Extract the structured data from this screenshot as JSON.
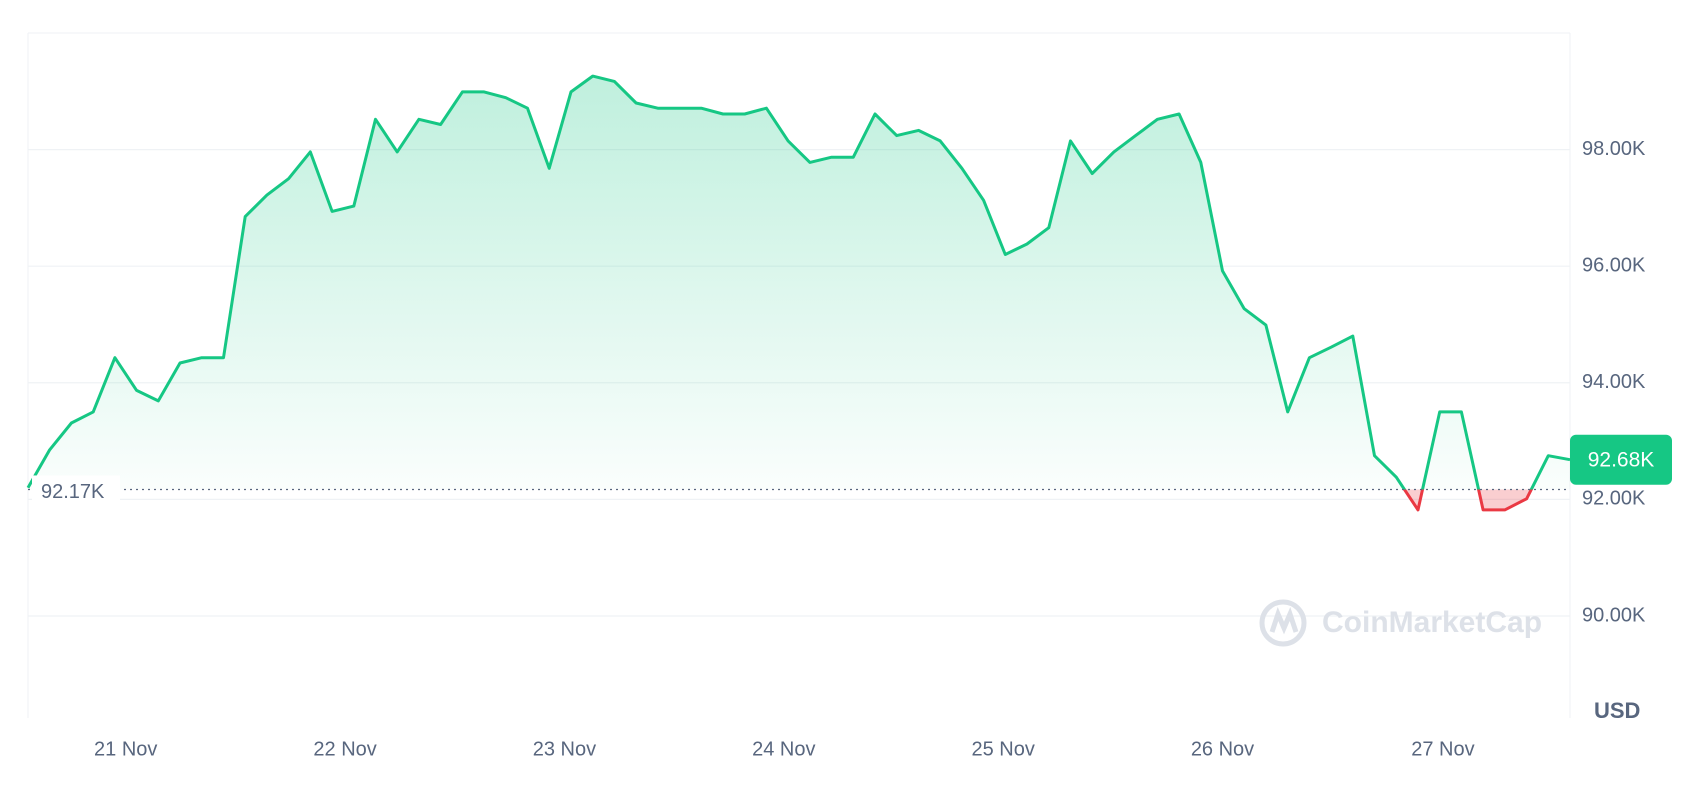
{
  "chart_data": {
    "type": "line",
    "series": [
      {
        "name": "Price",
        "color": "#16c784",
        "down_color": "#ea3943",
        "values": [
          92200,
          92850,
          93310,
          93500,
          94430,
          93870,
          93690,
          94340,
          94430,
          94430,
          96850,
          97220,
          97500,
          97960,
          96940,
          97030,
          98520,
          97960,
          98520,
          98430,
          98990,
          98990,
          98890,
          98710,
          97680,
          98990,
          99260,
          99170,
          98800,
          98710,
          98710,
          98710,
          98610,
          98610,
          98710,
          98150,
          97780,
          97870,
          97870,
          98610,
          98240,
          98330,
          98150,
          97680,
          97130,
          96200,
          96380,
          96660,
          98150,
          97590,
          97960,
          98240,
          98520,
          98610,
          97780,
          95920,
          95270,
          94990,
          93500,
          94430,
          94610,
          94800,
          92750,
          92380,
          91820,
          93500,
          93500,
          91820,
          91820,
          92010,
          92750,
          92680
        ]
      }
    ],
    "xlim": [
      0,
      71
    ],
    "xticks": [
      {
        "value": 4.5,
        "label": "21 Nov"
      },
      {
        "value": 14.6,
        "label": "22 Nov"
      },
      {
        "value": 24.7,
        "label": "23 Nov"
      },
      {
        "value": 34.8,
        "label": "24 Nov"
      },
      {
        "value": 44.9,
        "label": "25 Nov"
      },
      {
        "value": 55,
        "label": "26 Nov"
      },
      {
        "value": 65.15,
        "label": "27 Nov"
      }
    ],
    "ylim": [
      88250,
      100000
    ],
    "yticks": [
      {
        "value": 90000,
        "label": "90.00K"
      },
      {
        "value": 92000,
        "label": "92.00K"
      },
      {
        "value": 94000,
        "label": "94.00K"
      },
      {
        "value": 96000,
        "label": "96.00K"
      },
      {
        "value": 98000,
        "label": "98.00K"
      }
    ],
    "grid": true,
    "open": {
      "value": 92170,
      "label": "92.17K"
    },
    "current": {
      "value": 92680,
      "label": "92.68K"
    },
    "currency": "USD",
    "watermark": "CoinMarketCap"
  }
}
